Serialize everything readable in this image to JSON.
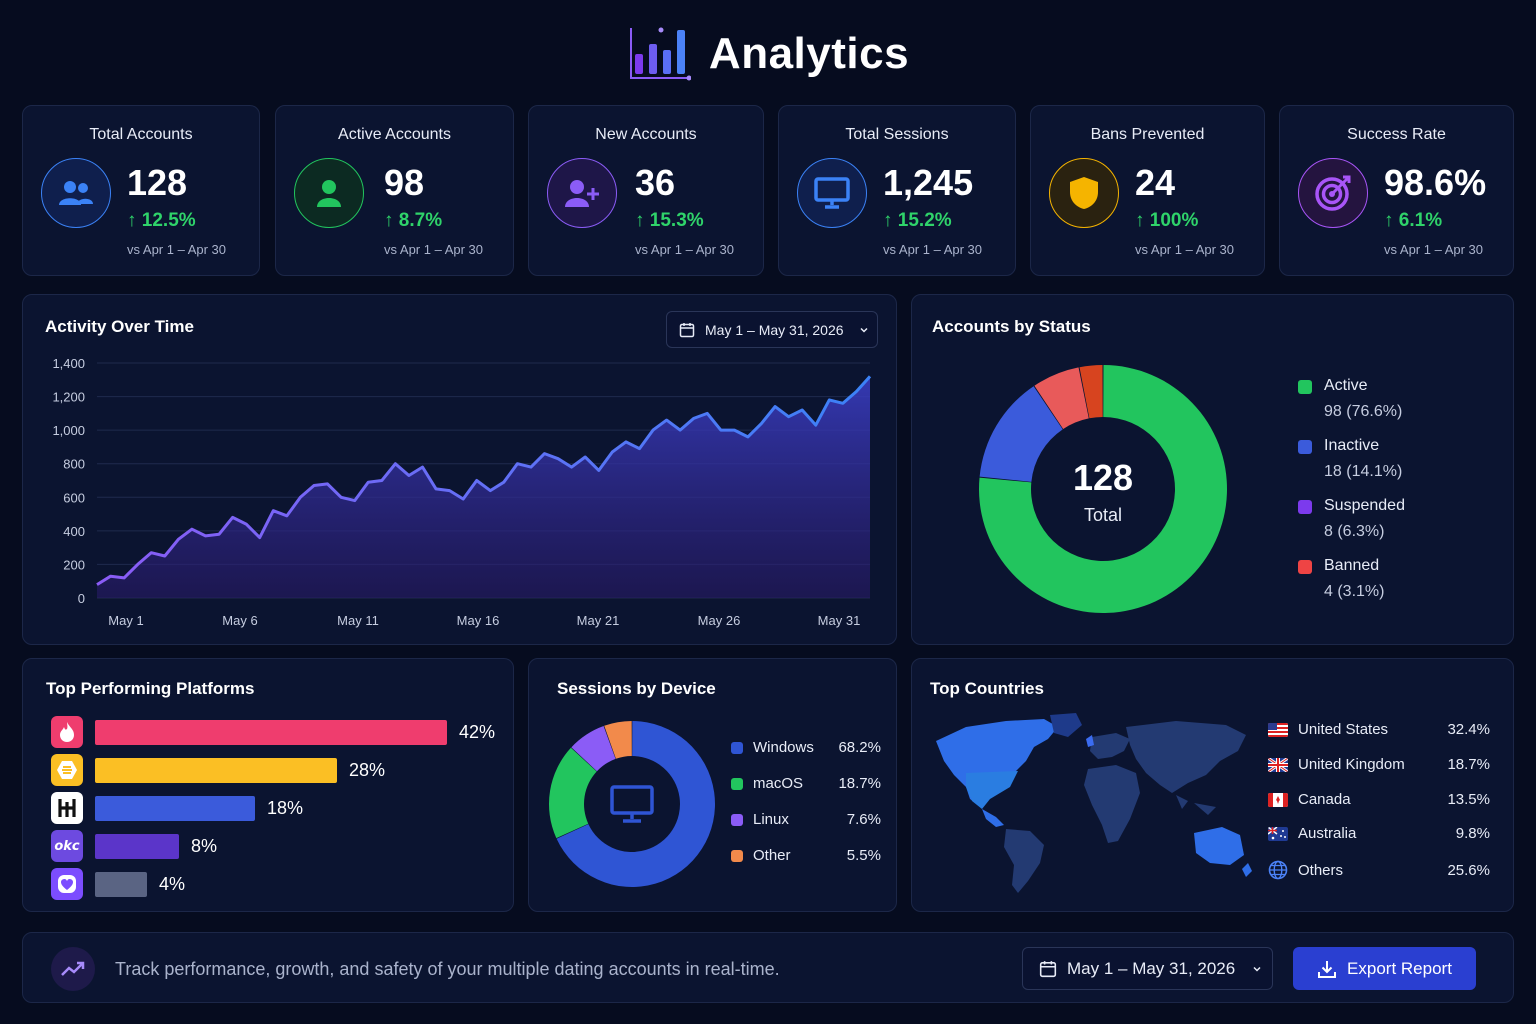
{
  "header": {
    "title": "Analytics"
  },
  "kpis": [
    {
      "title": "Total Accounts",
      "value": "128",
      "delta": "12.5%",
      "sub": "vs Apr 1 – Apr 30",
      "color": "#3b82f6"
    },
    {
      "title": "Active Accounts",
      "value": "98",
      "delta": "8.7%",
      "sub": "vs Apr 1 – Apr 30",
      "color": "#22c55e"
    },
    {
      "title": "New Accounts",
      "value": "36",
      "delta": "15.3%",
      "sub": "vs Apr 1 – Apr 30",
      "color": "#8b5cf6"
    },
    {
      "title": "Total Sessions",
      "value": "1,245",
      "delta": "15.2%",
      "sub": "vs Apr 1 – Apr 30",
      "color": "#3b82f6"
    },
    {
      "title": "Bans Prevented",
      "value": "24",
      "delta": "100%",
      "sub": "vs Apr 1 – Apr 30",
      "color": "#f5b400"
    },
    {
      "title": "Success Rate",
      "value": "98.6%",
      "delta": "6.1%",
      "sub": "vs Apr 1 – Apr 30",
      "color": "#a855f7"
    }
  ],
  "activity": {
    "title": "Activity Over Time",
    "date_range": "May 1 – May 31, 2026"
  },
  "chart_data": {
    "type": "area",
    "ylim": [
      0,
      1400
    ],
    "yticks": [
      "1,400",
      "1,200",
      "1,000",
      "800",
      "600",
      "400",
      "200",
      "0"
    ],
    "xtick_labels": [
      "May 1",
      "May 6",
      "May 11",
      "May 16",
      "May 21",
      "May 26",
      "May 31"
    ],
    "values": [
      80,
      130,
      120,
      200,
      270,
      250,
      350,
      410,
      370,
      380,
      480,
      440,
      360,
      520,
      490,
      600,
      670,
      680,
      600,
      580,
      690,
      700,
      800,
      730,
      780,
      650,
      640,
      590,
      700,
      640,
      690,
      800,
      780,
      860,
      830,
      780,
      840,
      760,
      870,
      930,
      890,
      1000,
      1060,
      1000,
      1070,
      1100,
      1000,
      1000,
      960,
      1040,
      1140,
      1080,
      1120,
      1030,
      1180,
      1160,
      1230,
      1320
    ]
  },
  "status": {
    "title": "Accounts by Status",
    "total": "128",
    "total_label": "Total",
    "items": [
      {
        "name": "Active",
        "val": "98 (76.6%)",
        "pct": 76.6,
        "color": "#22c55e"
      },
      {
        "name": "Inactive",
        "val": "18 (14.1%)",
        "pct": 14.1,
        "color": "#3b5bdb"
      },
      {
        "name": "Suspended",
        "val": "8 (6.3%)",
        "pct": 6.3,
        "color": "#7c3aed"
      },
      {
        "name": "Banned",
        "val": "4 (3.1%)",
        "pct": 3.1,
        "color": "#ef4444"
      }
    ]
  },
  "platforms": {
    "title": "Top Performing Platforms",
    "items": [
      {
        "icon": "tinder-icon",
        "pct": "42%",
        "value": 42,
        "color": "#ef3d6e",
        "icon_bg": "#ef3d6e"
      },
      {
        "icon": "bumble-icon",
        "pct": "28%",
        "value": 28,
        "color": "#fbbf24",
        "icon_bg": "#fbbf24"
      },
      {
        "icon": "hinge-icon",
        "pct": "18%",
        "value": 18,
        "color": "#3b5bdb",
        "icon_bg": "#ffffff"
      },
      {
        "icon": "okcupid-icon",
        "pct": "8%",
        "value": 8,
        "color": "#5b35c9",
        "icon_bg": "#6d4ae0"
      },
      {
        "icon": "heart-icon",
        "pct": "4%",
        "value": 4,
        "color": "#5a6483",
        "icon_bg": "#7c4dff"
      }
    ]
  },
  "devices": {
    "title": "Sessions by Device",
    "items": [
      {
        "name": "Windows",
        "pct": "68.2%",
        "value": 68.2,
        "color": "#2f55d4"
      },
      {
        "name": "macOS",
        "pct": "18.7%",
        "value": 18.7,
        "color": "#22c55e"
      },
      {
        "name": "Linux",
        "pct": "7.6%",
        "value": 7.6,
        "color": "#8b5cf6"
      },
      {
        "name": "Other",
        "pct": "5.5%",
        "value": 5.5,
        "color": "#f28a4b"
      }
    ]
  },
  "countries": {
    "title": "Top Countries",
    "items": [
      {
        "name": "United States",
        "pct": "32.4%",
        "flag": "us-flag-icon"
      },
      {
        "name": "United Kingdom",
        "pct": "18.7%",
        "flag": "uk-flag-icon"
      },
      {
        "name": "Canada",
        "pct": "13.5%",
        "flag": "ca-flag-icon"
      },
      {
        "name": "Australia",
        "pct": "9.8%",
        "flag": "au-flag-icon"
      },
      {
        "name": "Others",
        "pct": "25.6%",
        "flag": "globe-icon"
      }
    ]
  },
  "footer": {
    "text": "Track performance, growth, and safety of your multiple dating accounts in real-time.",
    "date_range": "May 1 – May 31, 2026",
    "export_label": "Export Report"
  }
}
